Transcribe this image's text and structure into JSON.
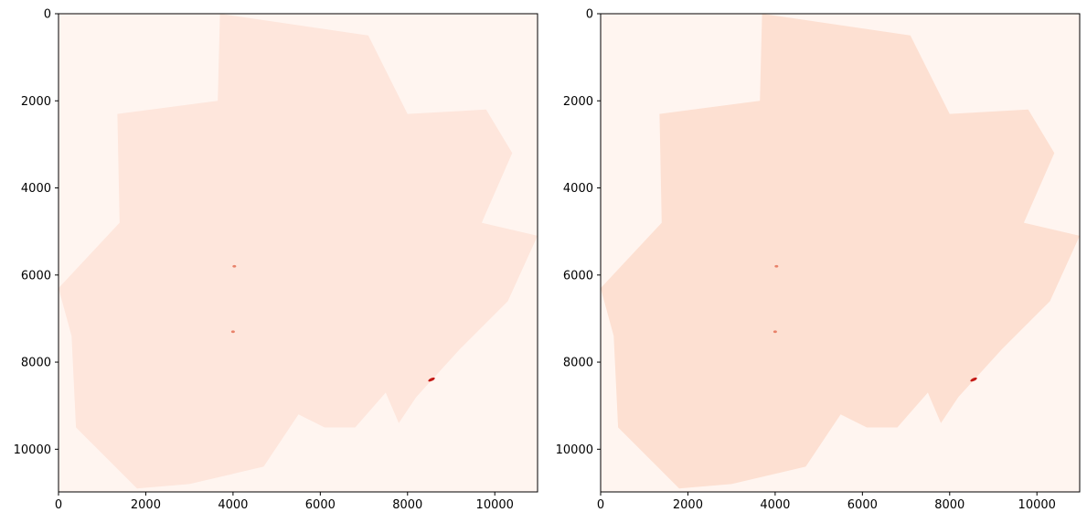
{
  "chart_data": [
    {
      "type": "heatmap",
      "colormap": "Reds",
      "background_color": "#fff5f0",
      "region_color": "#fee6dc",
      "xlim": [
        0,
        10980
      ],
      "ylim": [
        10980,
        0
      ],
      "xticks": [
        0,
        2000,
        4000,
        6000,
        8000,
        10000
      ],
      "yticks": [
        0,
        2000,
        4000,
        6000,
        8000,
        10000
      ],
      "xtick_labels": [
        "0",
        "2000",
        "4000",
        "6000",
        "8000",
        "10000"
      ],
      "ytick_labels": [
        "0",
        "2000",
        "4000",
        "6000",
        "8000",
        "10000"
      ],
      "region_outline": [
        [
          3700,
          0
        ],
        [
          7100,
          500
        ],
        [
          8000,
          2300
        ],
        [
          9800,
          2200
        ],
        [
          10400,
          3200
        ],
        [
          9700,
          4800
        ],
        [
          10980,
          5100
        ],
        [
          10300,
          6600
        ],
        [
          9200,
          7700
        ],
        [
          8200,
          8800
        ],
        [
          7800,
          9400
        ],
        [
          7500,
          8700
        ],
        [
          6800,
          9500
        ],
        [
          6100,
          9500
        ],
        [
          5500,
          9200
        ],
        [
          4700,
          10400
        ],
        [
          3000,
          10800
        ],
        [
          1800,
          10900
        ],
        [
          400,
          9500
        ],
        [
          300,
          7400
        ],
        [
          0,
          6300
        ],
        [
          1400,
          4800
        ],
        [
          1350,
          2300
        ],
        [
          3650,
          2000
        ]
      ],
      "hotspots": [
        [
          8550,
          8400
        ],
        [
          4030,
          5800
        ],
        [
          4000,
          7300
        ]
      ],
      "title": "",
      "xlabel": "",
      "ylabel": ""
    },
    {
      "type": "heatmap",
      "colormap": "Reds",
      "background_color": "#fff5f0",
      "region_color": "#fde0d2",
      "xlim": [
        0,
        10980
      ],
      "ylim": [
        10980,
        0
      ],
      "xticks": [
        0,
        2000,
        4000,
        6000,
        8000,
        10000
      ],
      "yticks": [
        0,
        2000,
        4000,
        6000,
        8000,
        10000
      ],
      "xtick_labels": [
        "0",
        "2000",
        "4000",
        "6000",
        "8000",
        "10000"
      ],
      "ytick_labels": [
        "0",
        "2000",
        "4000",
        "6000",
        "8000",
        "10000"
      ],
      "region_outline": [
        [
          3700,
          0
        ],
        [
          7100,
          500
        ],
        [
          8000,
          2300
        ],
        [
          9800,
          2200
        ],
        [
          10400,
          3200
        ],
        [
          9700,
          4800
        ],
        [
          10980,
          5100
        ],
        [
          10300,
          6600
        ],
        [
          9200,
          7700
        ],
        [
          8200,
          8800
        ],
        [
          7800,
          9400
        ],
        [
          7500,
          8700
        ],
        [
          6800,
          9500
        ],
        [
          6100,
          9500
        ],
        [
          5500,
          9200
        ],
        [
          4700,
          10400
        ],
        [
          3000,
          10800
        ],
        [
          1800,
          10900
        ],
        [
          400,
          9500
        ],
        [
          300,
          7400
        ],
        [
          0,
          6300
        ],
        [
          1400,
          4800
        ],
        [
          1350,
          2300
        ],
        [
          3650,
          2000
        ]
      ],
      "hotspots": [
        [
          8550,
          8400
        ],
        [
          4030,
          5800
        ],
        [
          4000,
          7300
        ]
      ],
      "title": "",
      "xlabel": "",
      "ylabel": ""
    }
  ]
}
